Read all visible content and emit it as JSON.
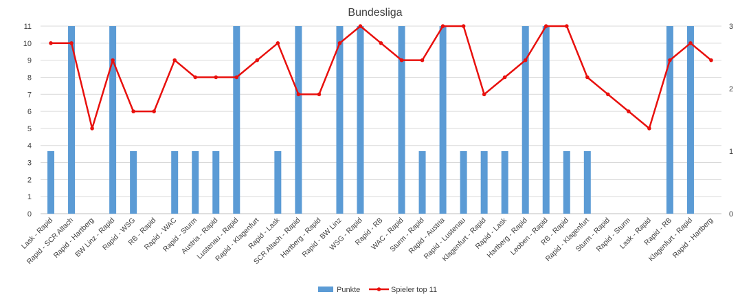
{
  "chart_data": {
    "type": "bar+line",
    "title": "Bundesliga",
    "categories": [
      "Lask - Rapid",
      "Rapid - SCR Altach",
      "Rapid - Hartberg",
      "BW Linz - Rapid",
      "Rapid - WSG",
      "RB - Rapid",
      "Rapid - WAC",
      "Rapid - Sturm",
      "Austria - Rapid",
      "Lustenau - Rapid",
      "Rapid - Klagenfurt",
      "Rapid - Lask",
      "SCR Altach - Rapid",
      "Hartberg - Rapid",
      "Rapid - BW Linz",
      "WSG - Rapid",
      "Rapid - RB",
      "WAC - Rapid",
      "Sturm - Rapid",
      "Rapid - Austria",
      "Rapid - Lustenau",
      "Klagenfurt - Rapid",
      "Rapid - Lask",
      "Hartberg - Rapid",
      "Leoben - Rapid",
      "RB - Rapid",
      "Rapid - Klagenfurt",
      "Sturm - Rapid",
      "Rapid - Sturm",
      "Lask - Rapid",
      "Rapid - RB",
      "Klagenfurt - Rapid",
      "Rapid - Hartberg"
    ],
    "series": [
      {
        "name": "Punkte",
        "type": "bar",
        "axis": "right",
        "color": "#5b9bd5",
        "values": [
          1,
          3,
          0,
          3,
          1,
          0,
          1,
          1,
          1,
          3,
          0,
          1,
          3,
          0,
          3,
          3,
          0,
          3,
          1,
          3,
          1,
          1,
          1,
          3,
          3,
          1,
          1,
          0,
          0,
          0,
          3,
          3,
          0
        ]
      },
      {
        "name": "Spieler top 11",
        "type": "line",
        "axis": "left",
        "color": "#e8100d",
        "values": [
          10,
          10,
          5,
          9,
          6,
          6,
          9,
          8,
          8,
          8,
          9,
          10,
          7,
          7,
          10,
          11,
          10,
          9,
          9,
          11,
          11,
          7,
          8,
          9,
          11,
          11,
          8,
          7,
          6,
          5,
          9,
          10,
          9
        ]
      }
    ],
    "yaxis_left": {
      "min": 0,
      "max": 11,
      "ticks": [
        "0",
        "1",
        "2",
        "3",
        "4",
        "5",
        "6",
        "7",
        "8",
        "9",
        "10",
        "11"
      ]
    },
    "yaxis_right": {
      "min": 0,
      "max": 3,
      "ticks": [
        "0",
        "1",
        "2",
        "3"
      ]
    },
    "grid": true,
    "legend_position": "bottom"
  }
}
